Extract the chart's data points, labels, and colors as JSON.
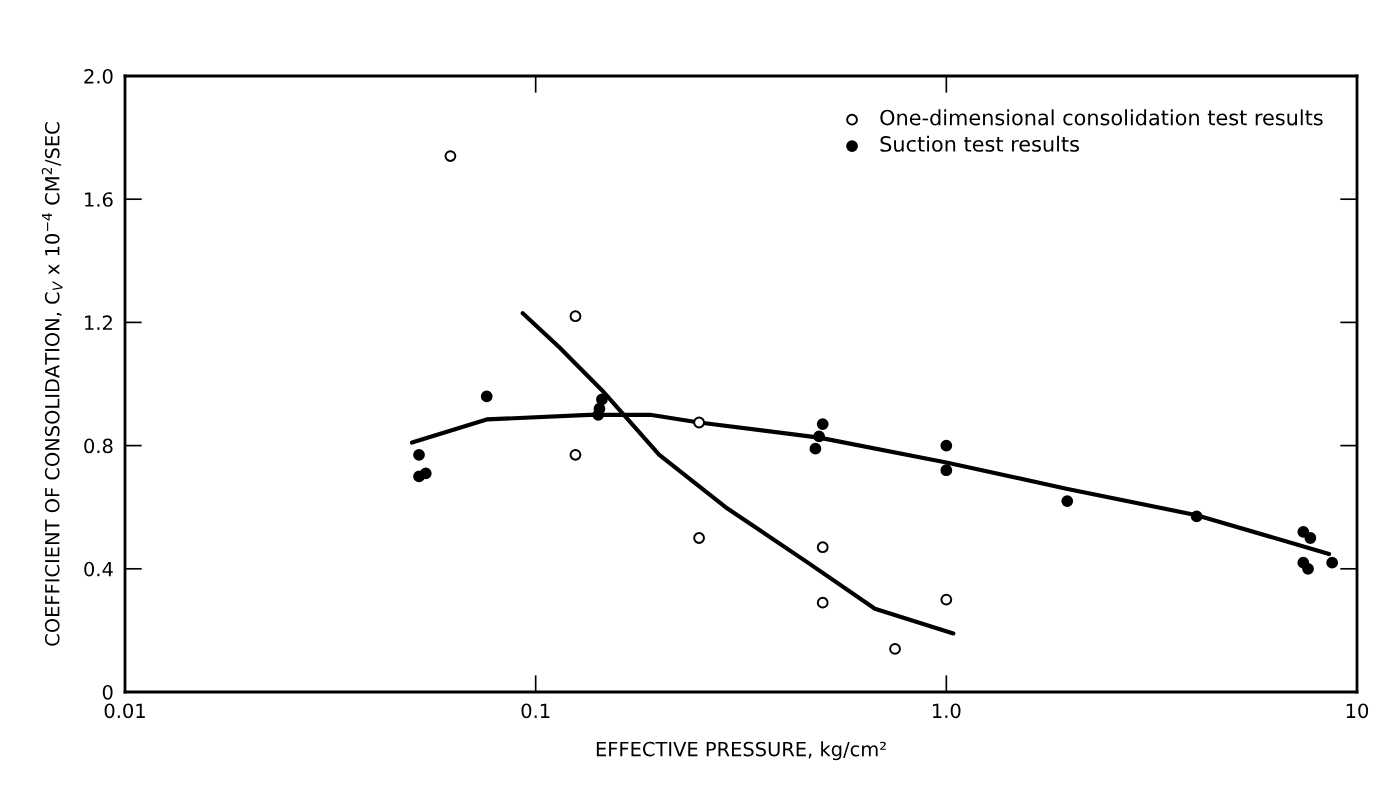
{
  "chart_data": {
    "type": "scatter",
    "xlabel": "EFFECTIVE PRESSURE, kg/cm²",
    "ylabel": "COEFFICIENT OF CONSOLIDATION, C$_{V}$ x 10$^{−4}$ CM$^{2}$/SEC",
    "log": "x",
    "xlim": [
      0.01,
      10
    ],
    "xticks": [
      0.01,
      0.1,
      {
        "value": 1,
        "label": "1.0"
      },
      10
    ],
    "ylim": [
      0,
      2.0
    ],
    "yticks": [
      0,
      0.4,
      0.8,
      1.2,
      1.6,
      {
        "value": 2.0,
        "label": "2.0"
      }
    ],
    "grid": false,
    "legend": "top right",
    "series": [
      {
        "name": "One-dimensional consolidation test results",
        "marker": "circle",
        "color": "#ffffff",
        "x": [
          0.062,
          0.125,
          0.125,
          0.25,
          0.25,
          0.5,
          0.5,
          0.75,
          1.0
        ],
        "values": [
          1.74,
          1.22,
          0.77,
          0.875,
          0.5,
          0.47,
          0.29,
          0.14,
          0.3
        ]
      },
      {
        "name": "Suction test results",
        "marker": "circle",
        "color": "#000000",
        "x": [
          0.052,
          0.052,
          0.054,
          0.076,
          0.145,
          0.143,
          0.142,
          0.5,
          0.49,
          0.48,
          1.0,
          1.0,
          1.97,
          4.07,
          7.4,
          7.7,
          7.4,
          7.6,
          8.7
        ],
        "values": [
          0.77,
          0.7,
          0.71,
          0.96,
          0.95,
          0.92,
          0.9,
          0.87,
          0.83,
          0.79,
          0.8,
          0.72,
          0.62,
          0.57,
          0.52,
          0.5,
          0.42,
          0.4,
          0.42
        ]
      },
      {
        "type": "line",
        "marker": "none",
        "color": "#000000",
        "x": [
          0.093,
          0.114,
          0.145,
          0.2,
          0.29,
          0.46,
          0.67,
          1.04
        ],
        "values": [
          1.23,
          1.12,
          0.98,
          0.77,
          0.6,
          0.42,
          0.27,
          0.19
        ]
      },
      {
        "type": "line",
        "marker": "none",
        "color": "#000000",
        "x": [
          0.05,
          0.076,
          0.135,
          0.19,
          0.25,
          0.49,
          1.0,
          1.96,
          4.07,
          8.55
        ],
        "values": [
          0.81,
          0.885,
          0.9,
          0.9,
          0.875,
          0.826,
          0.745,
          0.66,
          0.574,
          0.448
        ]
      }
    ]
  }
}
